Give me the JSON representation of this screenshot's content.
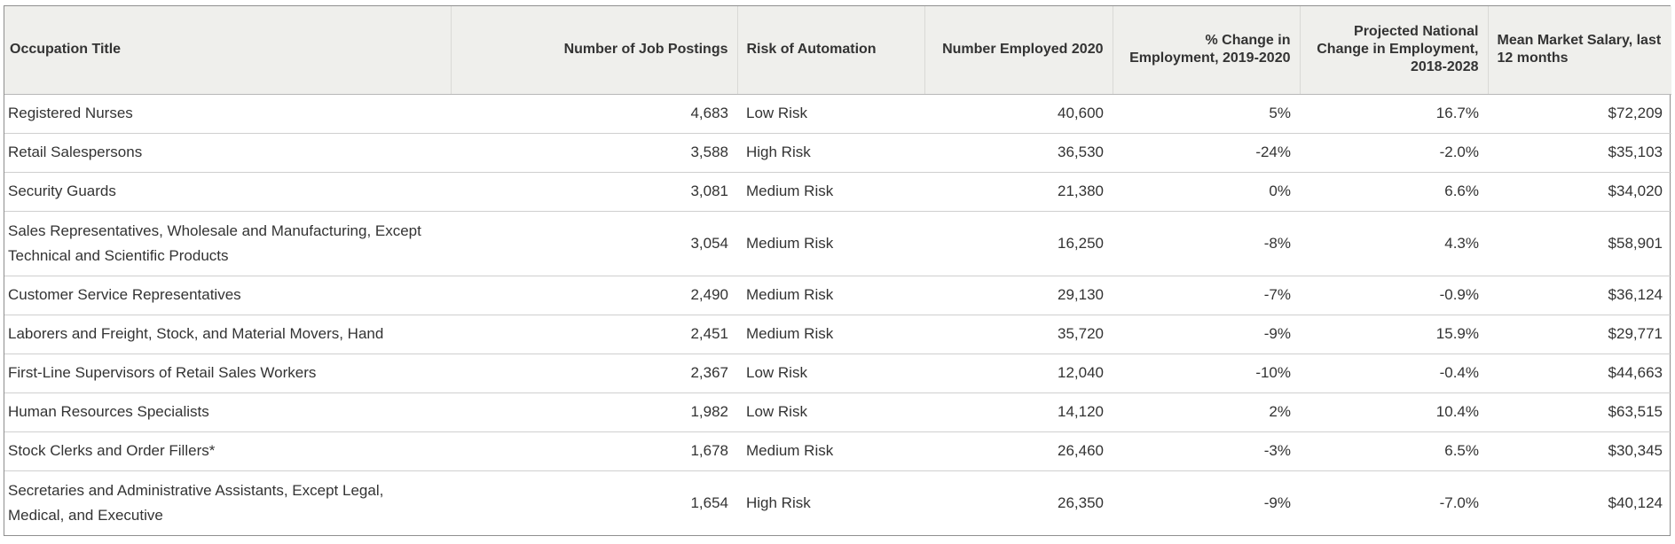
{
  "table": {
    "headers": [
      "Occupation Title",
      "Number of Job Postings",
      "Risk of Automation",
      "Number Employed 2020",
      "% Change in Employment, 2019-2020",
      "Projected National Change in Employment, 2018-2028",
      "Mean Market Salary, last 12 months"
    ],
    "rows": [
      [
        "Registered Nurses",
        "4,683",
        "Low Risk",
        "40,600",
        "5%",
        "16.7%",
        "$72,209"
      ],
      [
        "Retail Salespersons",
        "3,588",
        "High Risk",
        "36,530",
        "-24%",
        "-2.0%",
        "$35,103"
      ],
      [
        "Security Guards",
        "3,081",
        "Medium Risk",
        "21,380",
        "0%",
        "6.6%",
        "$34,020"
      ],
      [
        "Sales Representatives, Wholesale and Manufacturing, Except Technical and Scientific Products",
        "3,054",
        "Medium Risk",
        "16,250",
        "-8%",
        "4.3%",
        "$58,901"
      ],
      [
        "Customer Service Representatives",
        "2,490",
        "Medium Risk",
        "29,130",
        "-7%",
        "-0.9%",
        "$36,124"
      ],
      [
        "Laborers and Freight, Stock, and Material Movers, Hand",
        "2,451",
        "Medium Risk",
        "35,720",
        "-9%",
        "15.9%",
        "$29,771"
      ],
      [
        "First-Line Supervisors of Retail Sales Workers",
        "2,367",
        "Low Risk",
        "12,040",
        "-10%",
        "-0.4%",
        "$44,663"
      ],
      [
        "Human Resources Specialists",
        "1,982",
        "Low Risk",
        "14,120",
        "2%",
        "10.4%",
        "$63,515"
      ],
      [
        "Stock Clerks and Order Fillers*",
        "1,678",
        "Medium Risk",
        "26,460",
        "-3%",
        "6.5%",
        "$30,345"
      ],
      [
        "Secretaries and Administrative Assistants, Except Legal, Medical, and Executive",
        "1,654",
        "High Risk",
        "26,350",
        "-9%",
        "-7.0%",
        "$40,124"
      ]
    ]
  }
}
